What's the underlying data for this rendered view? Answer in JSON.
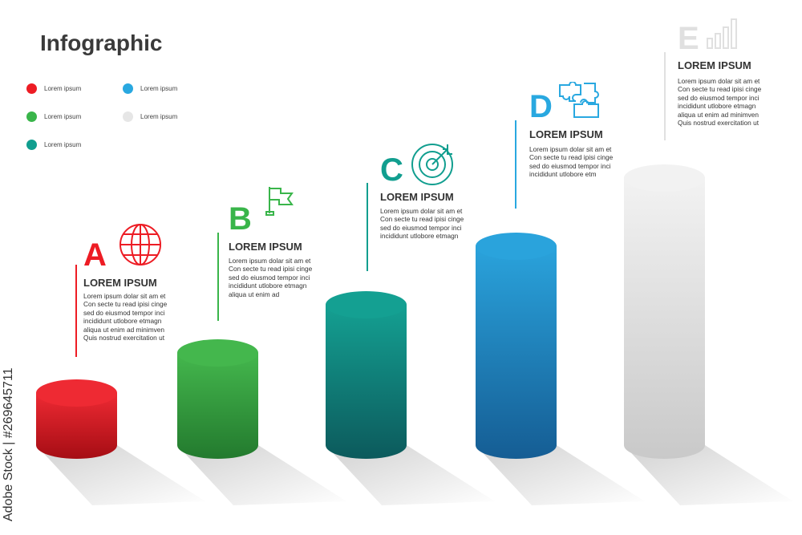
{
  "title": "Infographic",
  "legend": [
    {
      "label": "Lorem ipsum",
      "color": "#ed1c24"
    },
    {
      "label": "Lorem ipsum",
      "color": "#39b54a"
    },
    {
      "label": "Lorem ipsum",
      "color": "#119e8f"
    },
    {
      "label": "Lorem ipsum",
      "color": "#29a8e0"
    },
    {
      "label": "Lorem ipsum",
      "color": "#e6e6e6"
    }
  ],
  "items": [
    {
      "letter": "A",
      "icon": "globe-icon",
      "color": "#ed1c24",
      "heading": "LOREM IPSUM",
      "lines": [
        "Lorem ipsum dolar sit am et",
        "Con secte tu read ipisi cinge",
        "sed do eiusmod tempor inci",
        "incididunt utlobore etmagn",
        "aliqua ut enim ad minimven",
        "Quis nostrud exercitation ut"
      ],
      "level": 1
    },
    {
      "letter": "B",
      "icon": "flag-icon",
      "color": "#39b54a",
      "heading": "LOREM IPSUM",
      "lines": [
        "Lorem ipsum dolar sit am et",
        "Con secte tu read ipisi cinge",
        "sed do eiusmod tempor inci",
        "incididunt utlobore etmagn",
        "aliqua ut enim ad"
      ],
      "level": 2
    },
    {
      "letter": "C",
      "icon": "target-icon",
      "color": "#119e8f",
      "heading": "LOREM IPSUM",
      "lines": [
        "Lorem ipsum dolar sit am et",
        "Con secte tu read ipisi cinge",
        "sed do eiusmod tempor inci",
        "incididunt utlobore etmagn"
      ],
      "level": 3
    },
    {
      "letter": "D",
      "icon": "puzzle-icon",
      "color": "#29a8e0",
      "heading": "LOREM IPSUM",
      "lines": [
        "Lorem ipsum dolar sit am et",
        "Con secte tu read ipisi cinge",
        "sed do eiusmod tempor inci",
        "incididunt utlobore etm"
      ],
      "level": 4
    },
    {
      "letter": "E",
      "icon": "bar-chart-icon",
      "color": "#e0e0e0",
      "heading": "LOREM IPSUM",
      "lines": [
        "Lorem ipsum dolar sit am et",
        "Con secte tu read ipisi cinge",
        "sed do eiusmod tempor inci",
        "incididunt utlobore etmagn",
        "aliqua ut enim ad minimven",
        "Quis nostrud exercitation ut"
      ],
      "level": 5
    }
  ],
  "watermark": "Adobe Stock | #269645711"
}
